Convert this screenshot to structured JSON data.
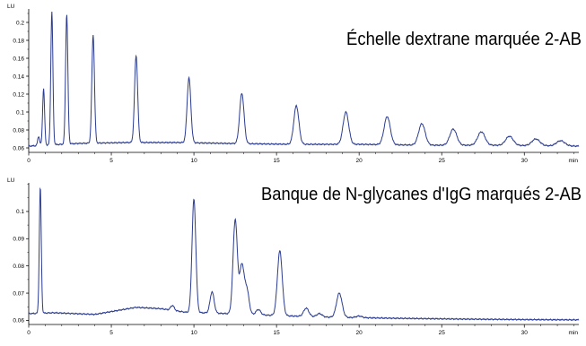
{
  "chart_data": [
    {
      "type": "line",
      "title": "Échelle dextrane marquée 2-AB",
      "ylabel": "LU",
      "xlabel": "min",
      "xlim": [
        0,
        33.3
      ],
      "ylim": [
        0.055,
        0.215
      ],
      "x_ticks": [
        "0",
        "5",
        "10",
        "15",
        "20",
        "25",
        "30"
      ],
      "y_ticks": [
        "0.06",
        "0.08",
        "0.1",
        "0.12",
        "0.14",
        "0.16",
        "0.18",
        "0.2"
      ],
      "grid": false,
      "line_color": "#2b3c8f",
      "baseline": [
        [
          0,
          0.062
        ],
        [
          3,
          0.065
        ],
        [
          6,
          0.066
        ],
        [
          9,
          0.066
        ],
        [
          12,
          0.065
        ],
        [
          16,
          0.064
        ],
        [
          20,
          0.064
        ],
        [
          24,
          0.063
        ],
        [
          28,
          0.063
        ],
        [
          33.3,
          0.062
        ]
      ],
      "peaks": [
        {
          "rt": 0.6,
          "height": 0.073
        },
        {
          "rt": 0.9,
          "height": 0.126
        },
        {
          "rt": 1.4,
          "height": 0.212
        },
        {
          "rt": 2.3,
          "height": 0.209
        },
        {
          "rt": 3.9,
          "height": 0.186
        },
        {
          "rt": 6.5,
          "height": 0.163
        },
        {
          "rt": 9.7,
          "height": 0.138
        },
        {
          "rt": 12.9,
          "height": 0.121
        },
        {
          "rt": 16.2,
          "height": 0.107
        },
        {
          "rt": 19.2,
          "height": 0.1
        },
        {
          "rt": 21.7,
          "height": 0.095
        },
        {
          "rt": 23.8,
          "height": 0.087
        },
        {
          "rt": 25.7,
          "height": 0.081
        },
        {
          "rt": 27.4,
          "height": 0.078
        },
        {
          "rt": 29.1,
          "height": 0.073
        },
        {
          "rt": 30.7,
          "height": 0.07
        },
        {
          "rt": 32.2,
          "height": 0.068
        }
      ]
    },
    {
      "type": "line",
      "title": "Banque de N-glycanes d'IgG marqués 2-AB",
      "ylabel": "LU",
      "xlabel": "min",
      "xlim": [
        0,
        33.3
      ],
      "ylim": [
        0.0585,
        0.1105
      ],
      "x_ticks": [
        "0",
        "5",
        "10",
        "15",
        "20",
        "25",
        "30"
      ],
      "y_ticks": [
        "0.06",
        "0.07",
        "0.08",
        "0.09",
        "0.1"
      ],
      "grid": false,
      "line_color": "#2b3c8f",
      "baseline": [
        [
          0,
          0.0625
        ],
        [
          1.5,
          0.0628
        ],
        [
          4,
          0.0622
        ],
        [
          6.5,
          0.0648
        ],
        [
          8,
          0.0643
        ],
        [
          9.5,
          0.063
        ],
        [
          12,
          0.0625
        ],
        [
          15,
          0.0618
        ],
        [
          18,
          0.0612
        ],
        [
          22,
          0.0608
        ],
        [
          26,
          0.0605
        ],
        [
          30,
          0.0603
        ],
        [
          33.3,
          0.0602
        ]
      ],
      "peaks": [
        {
          "rt": 0.7,
          "height": 0.109
        },
        {
          "rt": 8.7,
          "height": 0.0655
        },
        {
          "rt": 10.0,
          "height": 0.1045
        },
        {
          "rt": 11.1,
          "height": 0.0705
        },
        {
          "rt": 12.5,
          "height": 0.097
        },
        {
          "rt": 12.9,
          "height": 0.08
        },
        {
          "rt": 13.2,
          "height": 0.0713
        },
        {
          "rt": 13.9,
          "height": 0.064
        },
        {
          "rt": 15.2,
          "height": 0.0855
        },
        {
          "rt": 16.8,
          "height": 0.0645
        },
        {
          "rt": 17.6,
          "height": 0.0625
        },
        {
          "rt": 18.8,
          "height": 0.07
        },
        {
          "rt": 20.0,
          "height": 0.0616
        }
      ]
    }
  ]
}
